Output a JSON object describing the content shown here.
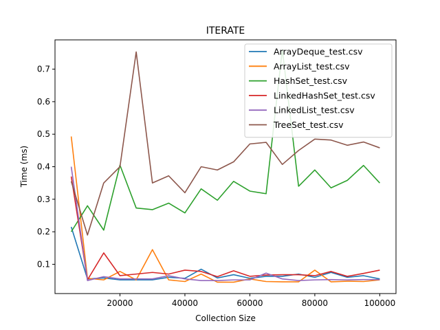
{
  "chart_data": {
    "type": "line",
    "title": "ITERATE",
    "xlabel": "Collection Size",
    "ylabel": "Time (ms)",
    "xlim": [
      0,
      105000
    ],
    "ylim": [
      0.01,
      0.79
    ],
    "x_ticks": [
      20000,
      40000,
      60000,
      80000,
      100000
    ],
    "x_tick_labels": [
      "20000",
      "40000",
      "60000",
      "80000",
      "100000"
    ],
    "y_ticks": [
      0.1,
      0.2,
      0.3,
      0.4,
      0.5,
      0.6,
      0.7
    ],
    "y_tick_labels": [
      "0.1",
      "0.2",
      "0.3",
      "0.4",
      "0.5",
      "0.6",
      "0.7"
    ],
    "grid": false,
    "legend_position": "top-right",
    "x": [
      5000,
      10000,
      15000,
      20000,
      25000,
      30000,
      35000,
      40000,
      45000,
      50000,
      55000,
      60000,
      65000,
      70000,
      75000,
      80000,
      85000,
      90000,
      95000,
      100000
    ],
    "series": [
      {
        "name": "ArrayDeque_test.csv",
        "color": "#1f77b4",
        "values": [
          0.215,
          0.055,
          0.058,
          0.052,
          0.052,
          0.052,
          0.06,
          0.057,
          0.085,
          0.058,
          0.068,
          0.057,
          0.063,
          0.063,
          0.07,
          0.06,
          0.075,
          0.06,
          0.065,
          0.055
        ]
      },
      {
        "name": "ArrayList_test.csv",
        "color": "#ff7f0e",
        "values": [
          0.493,
          0.057,
          0.052,
          0.078,
          0.052,
          0.145,
          0.052,
          0.047,
          0.07,
          0.045,
          0.045,
          0.055,
          0.047,
          0.046,
          0.046,
          0.082,
          0.046,
          0.048,
          0.047,
          0.052
        ]
      },
      {
        "name": "HashSet_test.csv",
        "color": "#2ca02c",
        "values": [
          0.2,
          0.28,
          0.205,
          0.405,
          0.273,
          0.268,
          0.288,
          0.258,
          0.332,
          0.297,
          0.355,
          0.325,
          0.317,
          0.76,
          0.34,
          0.39,
          0.335,
          0.358,
          0.404,
          0.35
        ]
      },
      {
        "name": "LinkedHashSet_test.csv",
        "color": "#d62728",
        "values": [
          0.37,
          0.052,
          0.135,
          0.065,
          0.07,
          0.075,
          0.07,
          0.082,
          0.078,
          0.062,
          0.08,
          0.063,
          0.067,
          0.068,
          0.068,
          0.065,
          0.078,
          0.063,
          0.072,
          0.082
        ]
      },
      {
        "name": "LinkedList_test.csv",
        "color": "#9467bd",
        "values": [
          0.4,
          0.05,
          0.062,
          0.055,
          0.055,
          0.055,
          0.065,
          0.055,
          0.05,
          0.05,
          0.052,
          0.052,
          0.073,
          0.055,
          0.05,
          0.052,
          0.053,
          0.052,
          0.053,
          0.053
        ]
      },
      {
        "name": "TreeSet_test.csv",
        "color": "#8c564b",
        "values": [
          0.355,
          0.19,
          0.35,
          0.4,
          0.753,
          0.35,
          0.372,
          0.32,
          0.4,
          0.39,
          0.415,
          0.47,
          0.475,
          0.407,
          0.45,
          0.485,
          0.482,
          0.466,
          0.476,
          0.458
        ]
      }
    ]
  }
}
